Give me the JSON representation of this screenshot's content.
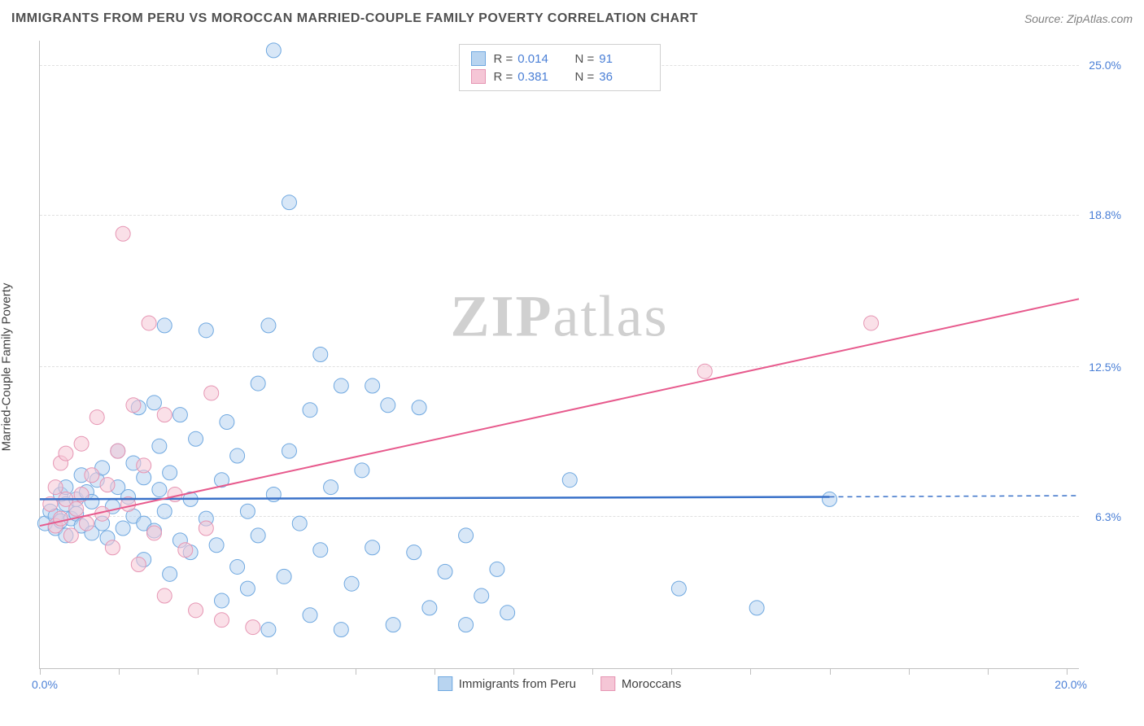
{
  "title": "IMMIGRANTS FROM PERU VS MOROCCAN MARRIED-COUPLE FAMILY POVERTY CORRELATION CHART",
  "source_prefix": "Source: ",
  "source_name": "ZipAtlas.com",
  "watermark_bold": "ZIP",
  "watermark_light": "atlas",
  "y_axis_label": "Married-Couple Family Poverty",
  "chart": {
    "type": "scatter",
    "x_min": 0.0,
    "x_max": 20.0,
    "y_min": 0.0,
    "y_max": 26.0,
    "x_tick_label_min": "0.0%",
    "x_tick_label_max": "20.0%",
    "x_tick_positions_pct": [
      0,
      7.6,
      15.2,
      22.8,
      30.4,
      38.0,
      45.6,
      53.2,
      60.8,
      68.4,
      76.0,
      83.6,
      91.2,
      98.8
    ],
    "y_gridlines": [
      {
        "value": 6.3,
        "label": "6.3%"
      },
      {
        "value": 12.5,
        "label": "12.5%"
      },
      {
        "value": 18.8,
        "label": "18.8%"
      },
      {
        "value": 25.0,
        "label": "25.0%"
      }
    ],
    "grid_color": "#e0e0e0",
    "background_color": "#ffffff",
    "series": [
      {
        "key": "peru",
        "label": "Immigrants from Peru",
        "fill": "#b8d4f0",
        "stroke": "#6fa8e0",
        "fill_opacity": 0.55,
        "marker_radius": 9,
        "r_value": "0.014",
        "n_value": "91",
        "trend_color": "#3a72c9",
        "trend_width": 2.5,
        "trend_y_at_xmin": 7.0,
        "trend_y_at_solid_end": 7.1,
        "trend_solid_end_x": 15.2,
        "trend_y_at_xmax": 7.15,
        "points": [
          {
            "x": 0.1,
            "y": 6.0
          },
          {
            "x": 0.2,
            "y": 6.5
          },
          {
            "x": 0.3,
            "y": 6.3
          },
          {
            "x": 0.3,
            "y": 5.8
          },
          {
            "x": 0.4,
            "y": 7.2
          },
          {
            "x": 0.4,
            "y": 6.1
          },
          {
            "x": 0.5,
            "y": 6.8
          },
          {
            "x": 0.5,
            "y": 7.5
          },
          {
            "x": 0.5,
            "y": 5.5
          },
          {
            "x": 0.6,
            "y": 6.2
          },
          {
            "x": 0.7,
            "y": 7.0
          },
          {
            "x": 0.7,
            "y": 6.4
          },
          {
            "x": 0.8,
            "y": 8.0
          },
          {
            "x": 0.8,
            "y": 5.9
          },
          {
            "x": 0.9,
            "y": 7.3
          },
          {
            "x": 1.0,
            "y": 5.6
          },
          {
            "x": 1.0,
            "y": 6.9
          },
          {
            "x": 1.1,
            "y": 7.8
          },
          {
            "x": 1.2,
            "y": 6.0
          },
          {
            "x": 1.2,
            "y": 8.3
          },
          {
            "x": 1.3,
            "y": 5.4
          },
          {
            "x": 1.4,
            "y": 6.7
          },
          {
            "x": 1.5,
            "y": 7.5
          },
          {
            "x": 1.5,
            "y": 9.0
          },
          {
            "x": 1.6,
            "y": 5.8
          },
          {
            "x": 1.7,
            "y": 7.1
          },
          {
            "x": 1.8,
            "y": 6.3
          },
          {
            "x": 1.8,
            "y": 8.5
          },
          {
            "x": 1.9,
            "y": 10.8
          },
          {
            "x": 2.0,
            "y": 6.0
          },
          {
            "x": 2.0,
            "y": 4.5
          },
          {
            "x": 2.0,
            "y": 7.9
          },
          {
            "x": 2.2,
            "y": 5.7
          },
          {
            "x": 2.2,
            "y": 11.0
          },
          {
            "x": 2.3,
            "y": 7.4
          },
          {
            "x": 2.3,
            "y": 9.2
          },
          {
            "x": 2.4,
            "y": 6.5
          },
          {
            "x": 2.4,
            "y": 14.2
          },
          {
            "x": 2.5,
            "y": 3.9
          },
          {
            "x": 2.5,
            "y": 8.1
          },
          {
            "x": 2.7,
            "y": 5.3
          },
          {
            "x": 2.7,
            "y": 10.5
          },
          {
            "x": 2.9,
            "y": 7.0
          },
          {
            "x": 2.9,
            "y": 4.8
          },
          {
            "x": 3.0,
            "y": 9.5
          },
          {
            "x": 3.2,
            "y": 6.2
          },
          {
            "x": 3.2,
            "y": 14.0
          },
          {
            "x": 3.4,
            "y": 5.1
          },
          {
            "x": 3.5,
            "y": 7.8
          },
          {
            "x": 3.5,
            "y": 2.8
          },
          {
            "x": 3.6,
            "y": 10.2
          },
          {
            "x": 3.8,
            "y": 4.2
          },
          {
            "x": 3.8,
            "y": 8.8
          },
          {
            "x": 4.0,
            "y": 6.5
          },
          {
            "x": 4.0,
            "y": 3.3
          },
          {
            "x": 4.2,
            "y": 11.8
          },
          {
            "x": 4.2,
            "y": 5.5
          },
          {
            "x": 4.4,
            "y": 14.2
          },
          {
            "x": 4.4,
            "y": 1.6
          },
          {
            "x": 4.5,
            "y": 7.2
          },
          {
            "x": 4.5,
            "y": 25.6
          },
          {
            "x": 4.7,
            "y": 3.8
          },
          {
            "x": 4.8,
            "y": 9.0
          },
          {
            "x": 4.8,
            "y": 19.3
          },
          {
            "x": 5.0,
            "y": 6.0
          },
          {
            "x": 5.2,
            "y": 10.7
          },
          {
            "x": 5.2,
            "y": 2.2
          },
          {
            "x": 5.4,
            "y": 4.9
          },
          {
            "x": 5.4,
            "y": 13.0
          },
          {
            "x": 5.6,
            "y": 7.5
          },
          {
            "x": 5.8,
            "y": 11.7
          },
          {
            "x": 5.8,
            "y": 1.6
          },
          {
            "x": 6.0,
            "y": 3.5
          },
          {
            "x": 6.2,
            "y": 8.2
          },
          {
            "x": 6.4,
            "y": 5.0
          },
          {
            "x": 6.4,
            "y": 11.7
          },
          {
            "x": 6.7,
            "y": 10.9
          },
          {
            "x": 6.8,
            "y": 1.8
          },
          {
            "x": 7.2,
            "y": 4.8
          },
          {
            "x": 7.3,
            "y": 10.8
          },
          {
            "x": 7.5,
            "y": 2.5
          },
          {
            "x": 7.8,
            "y": 4.0
          },
          {
            "x": 8.2,
            "y": 5.5
          },
          {
            "x": 8.2,
            "y": 1.8
          },
          {
            "x": 8.5,
            "y": 3.0
          },
          {
            "x": 8.8,
            "y": 4.1
          },
          {
            "x": 9.0,
            "y": 2.3
          },
          {
            "x": 10.2,
            "y": 7.8
          },
          {
            "x": 12.3,
            "y": 3.3
          },
          {
            "x": 13.8,
            "y": 2.5
          },
          {
            "x": 15.2,
            "y": 7.0
          }
        ]
      },
      {
        "key": "moroccans",
        "label": "Moroccans",
        "fill": "#f5c6d6",
        "stroke": "#e695b3",
        "fill_opacity": 0.55,
        "marker_radius": 9,
        "r_value": "0.381",
        "n_value": "36",
        "trend_color": "#e75a8d",
        "trend_width": 2,
        "trend_y_at_xmin": 5.9,
        "trend_y_at_xmax": 15.3,
        "points": [
          {
            "x": 0.2,
            "y": 6.8
          },
          {
            "x": 0.3,
            "y": 7.5
          },
          {
            "x": 0.3,
            "y": 5.9
          },
          {
            "x": 0.4,
            "y": 8.5
          },
          {
            "x": 0.4,
            "y": 6.2
          },
          {
            "x": 0.5,
            "y": 7.0
          },
          {
            "x": 0.5,
            "y": 8.9
          },
          {
            "x": 0.6,
            "y": 5.5
          },
          {
            "x": 0.7,
            "y": 6.6
          },
          {
            "x": 0.8,
            "y": 9.3
          },
          {
            "x": 0.8,
            "y": 7.2
          },
          {
            "x": 0.9,
            "y": 6.0
          },
          {
            "x": 1.0,
            "y": 8.0
          },
          {
            "x": 1.1,
            "y": 10.4
          },
          {
            "x": 1.2,
            "y": 6.4
          },
          {
            "x": 1.3,
            "y": 7.6
          },
          {
            "x": 1.4,
            "y": 5.0
          },
          {
            "x": 1.5,
            "y": 9.0
          },
          {
            "x": 1.6,
            "y": 18.0
          },
          {
            "x": 1.7,
            "y": 6.8
          },
          {
            "x": 1.8,
            "y": 10.9
          },
          {
            "x": 1.9,
            "y": 4.3
          },
          {
            "x": 2.0,
            "y": 8.4
          },
          {
            "x": 2.1,
            "y": 14.3
          },
          {
            "x": 2.2,
            "y": 5.6
          },
          {
            "x": 2.4,
            "y": 10.5
          },
          {
            "x": 2.4,
            "y": 3.0
          },
          {
            "x": 2.6,
            "y": 7.2
          },
          {
            "x": 2.8,
            "y": 4.9
          },
          {
            "x": 3.0,
            "y": 2.4
          },
          {
            "x": 3.2,
            "y": 5.8
          },
          {
            "x": 3.3,
            "y": 11.4
          },
          {
            "x": 3.5,
            "y": 2.0
          },
          {
            "x": 4.1,
            "y": 1.7
          },
          {
            "x": 12.8,
            "y": 12.3
          },
          {
            "x": 16.0,
            "y": 14.3
          }
        ]
      }
    ],
    "legend_top": {
      "r_label": "R =",
      "n_label": "N ="
    }
  }
}
